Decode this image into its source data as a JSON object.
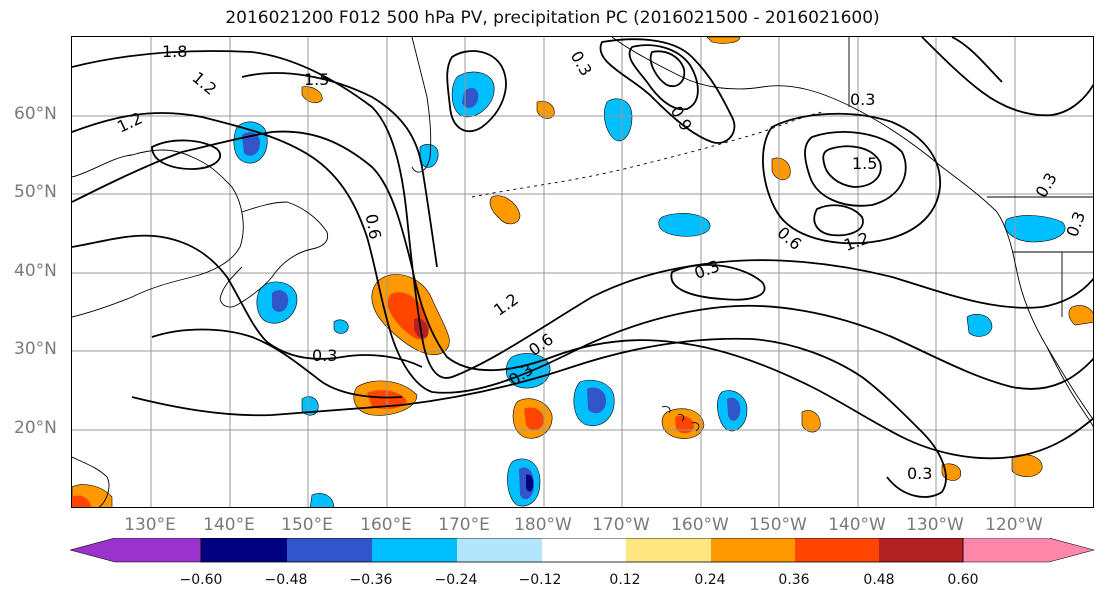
{
  "title": "2016021200 F012 500 hPa PV, precipitation PC (2016021500 - 2016021600)",
  "lat_labels": [
    "60°N",
    "50°N",
    "40°N",
    "30°N",
    "20°N"
  ],
  "lon_labels": [
    "130°E",
    "140°E",
    "150°E",
    "160°E",
    "170°E",
    "180°W",
    "170°W",
    "160°W",
    "150°W",
    "140°W",
    "130°W",
    "120°W"
  ],
  "contour_labels": [
    "1.8",
    "1.2",
    "1.5",
    "1.2",
    "0.3",
    "0.9",
    "1.5",
    "0.3",
    "1.2",
    "0.6",
    "0.3",
    "1.2",
    "0.6",
    "0.3",
    "0.3",
    "0.6",
    "0.3",
    "0.3",
    "0.3"
  ],
  "colorbar": {
    "tick_labels": [
      "−0.60",
      "−0.48",
      "−0.36",
      "−0.24",
      "−0.12",
      "0.12",
      "0.24",
      "0.36",
      "0.48",
      "0.60"
    ],
    "colors": [
      "#9933cc",
      "#000080",
      "#3355cc",
      "#00bfff",
      "#b3e5fc",
      "#ffffff",
      "#ffe680",
      "#ff9900",
      "#ff4500",
      "#b22222",
      "#ff88aa"
    ]
  },
  "legend_colors": {
    "contour": "#000000",
    "coast": "#000000",
    "grid": "#999999"
  }
}
